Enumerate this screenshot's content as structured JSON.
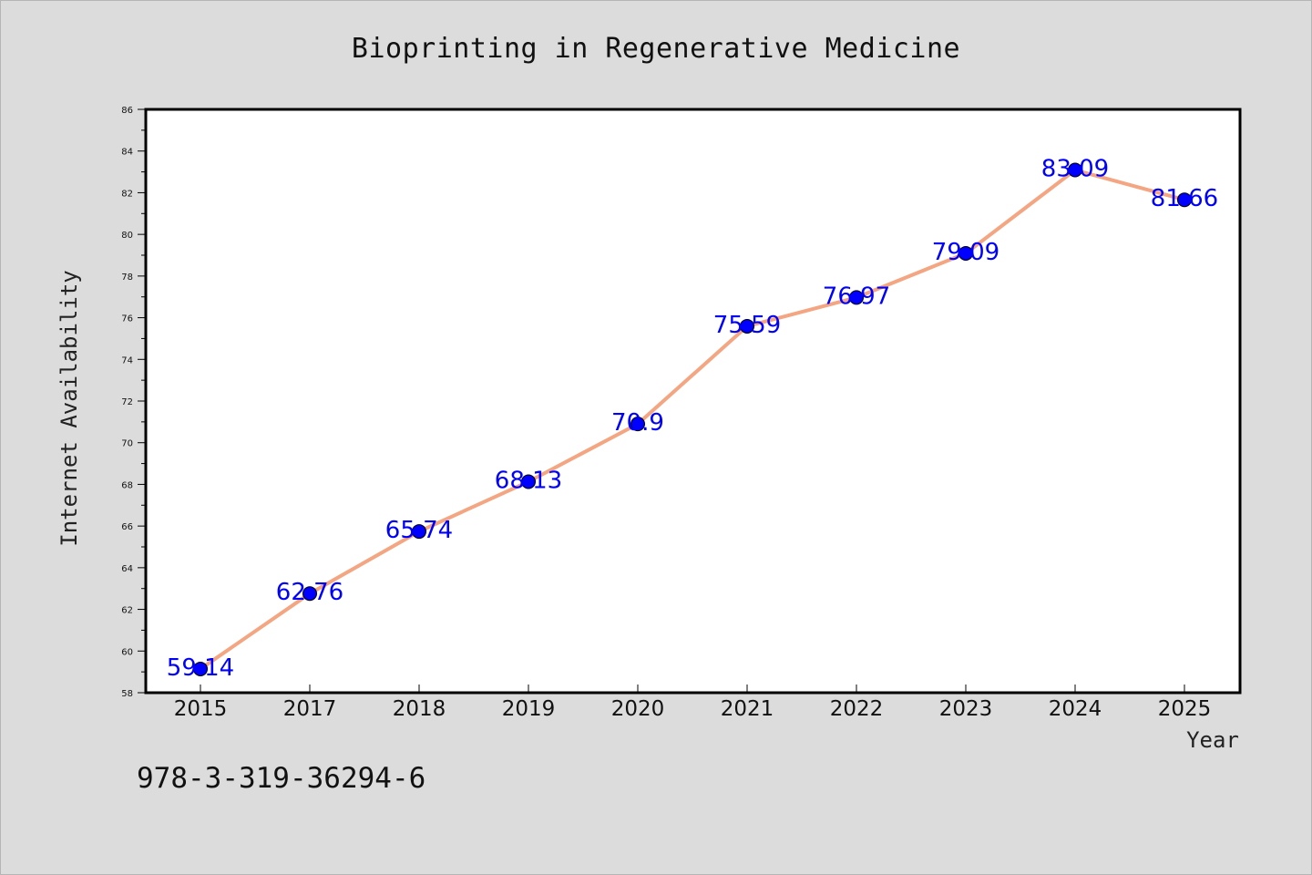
{
  "chart_data": {
    "type": "line",
    "title": "Bioprinting in Regenerative Medicine",
    "xlabel": "Year",
    "ylabel": "Internet Availability",
    "categories": [
      "2015",
      "2017",
      "2018",
      "2019",
      "2020",
      "2021",
      "2022",
      "2023",
      "2024",
      "2025"
    ],
    "series": [
      {
        "values": [
          59.14,
          62.76,
          65.74,
          68.13,
          70.9,
          75.59,
          76.97,
          79.09,
          83.09,
          81.66
        ],
        "labels": [
          "59.14",
          "62.76",
          "65.74",
          "68.13",
          "70.9",
          "75.59",
          "76.97",
          "79.09",
          "83.09",
          "81.66"
        ],
        "line_color": "#f4a582",
        "marker_color": "#0000ff"
      }
    ],
    "ylim": [
      58,
      86
    ],
    "yticks": [
      58,
      60,
      62,
      64,
      66,
      68,
      70,
      72,
      74,
      76,
      78,
      80,
      82,
      84,
      86
    ],
    "grid": false,
    "legend": "none"
  },
  "annotation": {
    "text": "978-3-319-36294-6"
  },
  "colors": {
    "background": "#dcdcdc",
    "plot_background": "#ffffff",
    "axis": "#000000"
  }
}
